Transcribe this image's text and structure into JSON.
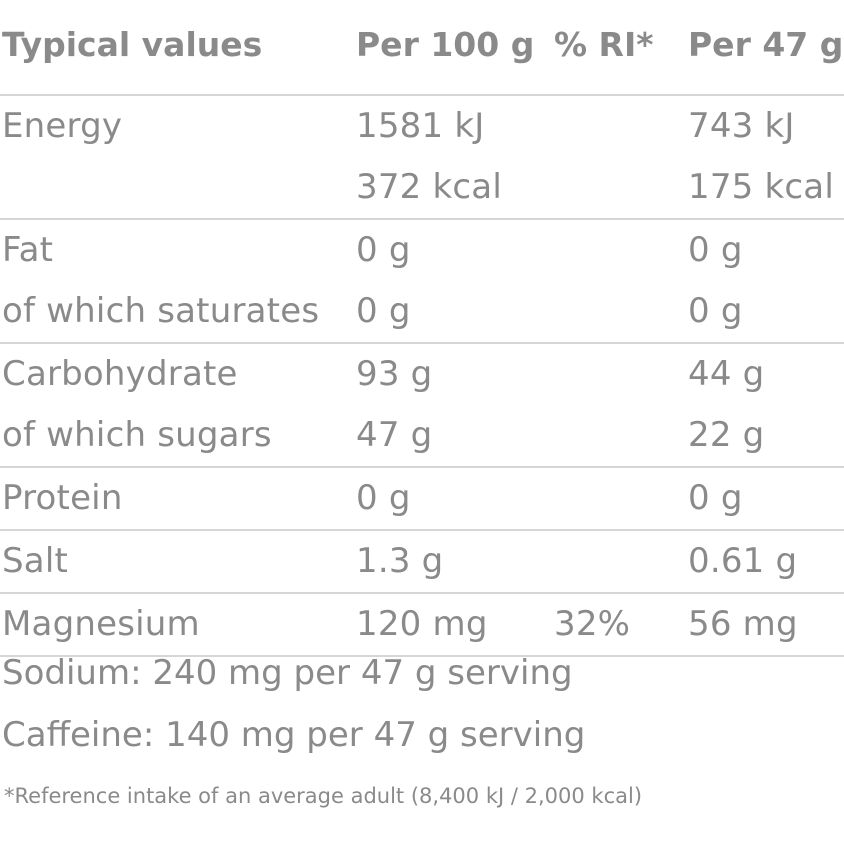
{
  "header": {
    "col_name": "Typical values",
    "col_per100": "Per 100 g",
    "col_ri": "% RI*",
    "col_perserve": "Per 47 g"
  },
  "rows": [
    {
      "lines": [
        {
          "name": "Energy",
          "per100": "1581 kJ",
          "ri": "",
          "perserve": "743 kJ"
        },
        {
          "name": "",
          "per100": "372 kcal",
          "ri": "",
          "perserve": "175 kcal"
        }
      ]
    },
    {
      "lines": [
        {
          "name": "Fat",
          "per100": "0 g",
          "ri": "",
          "perserve": "0 g"
        },
        {
          "name": "of which saturates",
          "per100": "0 g",
          "ri": "",
          "perserve": "0 g"
        }
      ]
    },
    {
      "lines": [
        {
          "name": "Carbohydrate",
          "per100": "93 g",
          "ri": "",
          "perserve": "44 g"
        },
        {
          "name": "of which sugars",
          "per100": "47 g",
          "ri": "",
          "perserve": "22 g"
        }
      ]
    },
    {
      "lines": [
        {
          "name": "Protein",
          "per100": "0 g",
          "ri": "",
          "perserve": "0 g"
        }
      ]
    },
    {
      "lines": [
        {
          "name": "Salt",
          "per100": "1.3 g",
          "ri": "",
          "perserve": "0.61 g"
        }
      ]
    },
    {
      "lines": [
        {
          "name": "Magnesium",
          "per100": "120 mg",
          "ri": "32%",
          "perserve": "56 mg"
        }
      ]
    }
  ],
  "notes": {
    "sodium": "Sodium: 240 mg per 47 g serving",
    "caffeine": "Caffeine: 140 mg per 47 g serving"
  },
  "footnote": "*Reference intake of an average adult (8,400 kJ / 2,000 kcal)"
}
